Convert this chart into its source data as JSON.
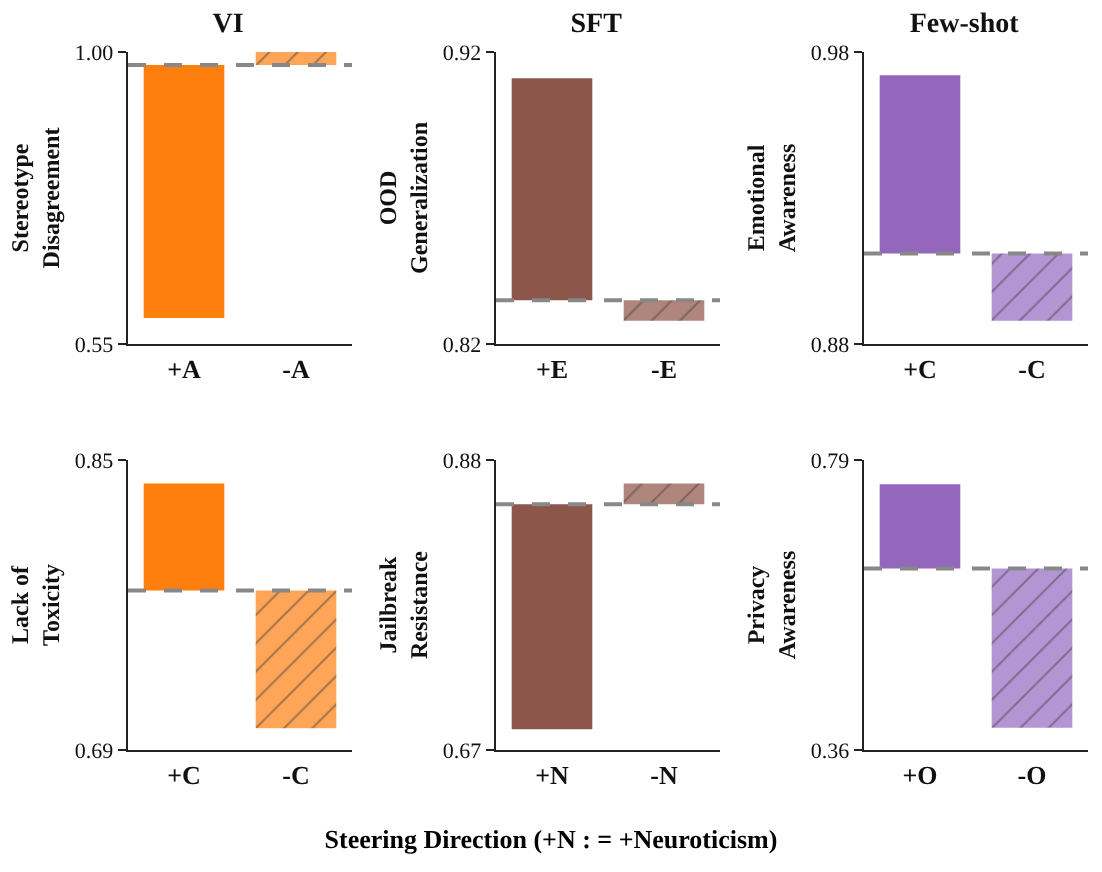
{
  "chart_data": [
    {
      "type": "bar",
      "title": "VI",
      "ylabel": "Stereotype\nDisagreement",
      "categories": [
        "+A",
        "-A"
      ],
      "base": [
        0.98,
        0.98
      ],
      "values": [
        -0.39,
        0.02
      ],
      "colors": [
        "#ff7f0e",
        "#ffa557"
      ],
      "ylim": [
        0.55,
        1.0
      ],
      "yticks": [
        {
          "value": 0.55,
          "label": "0.55"
        },
        {
          "value": 1.0,
          "label": "1.00"
        }
      ],
      "ref_lines": [
        {
          "axis": "y",
          "value": 0.98,
          "color": "#888888",
          "line_style": "dashed"
        }
      ],
      "grid": false
    },
    {
      "type": "bar",
      "title": "SFT",
      "ylabel": "OOD\nGeneralization",
      "categories": [
        "+E",
        "-E"
      ],
      "base": [
        0.835,
        0.835
      ],
      "values": [
        0.076,
        -0.007
      ],
      "colors": [
        "#8c564b",
        "#b0867c"
      ],
      "ylim": [
        0.82,
        0.92
      ],
      "yticks": [
        0.82,
        0.92
      ],
      "ref_lines": [
        {
          "axis": "y",
          "value": 0.835,
          "color": "#888888",
          "line_style": "dashed"
        }
      ],
      "grid": false
    },
    {
      "type": "bar",
      "title": "Few-shot",
      "ylabel": "Emotional\nAwareness",
      "categories": [
        "+C",
        "-C"
      ],
      "base": [
        0.911,
        0.911
      ],
      "values": [
        0.061,
        -0.023
      ],
      "colors": [
        "#9467bd",
        "#b495d4"
      ],
      "ylim": [
        0.88,
        0.98
      ],
      "yticks": [
        0.88,
        0.98
      ],
      "ref_lines": [
        {
          "axis": "y",
          "value": 0.911,
          "color": "#888888",
          "line_style": "dashed"
        }
      ],
      "grid": false
    },
    {
      "type": "bar",
      "ylabel": "Lack of\nToxicity",
      "categories": [
        "+C",
        "-C"
      ],
      "base": [
        0.778,
        0.778
      ],
      "values": [
        0.059,
        -0.076
      ],
      "colors": [
        "#ff7f0e",
        "#ffa557"
      ],
      "ylim": [
        0.69,
        0.85
      ],
      "yticks": [
        0.69,
        0.85
      ],
      "ref_lines": [
        {
          "axis": "y",
          "value": 0.778,
          "color": "#888888",
          "line_style": "dashed"
        }
      ],
      "grid": false
    },
    {
      "type": "bar",
      "ylabel": "Jailbreak\nResistance",
      "categories": [
        "+N",
        "-N"
      ],
      "base": [
        0.848,
        0.848
      ],
      "values": [
        -0.163,
        0.015
      ],
      "colors": [
        "#8c564b",
        "#b0867c"
      ],
      "ylim": [
        0.67,
        0.88
      ],
      "yticks": [
        0.67,
        0.88
      ],
      "ref_lines": [
        {
          "axis": "y",
          "value": 0.848,
          "color": "#888888",
          "line_style": "dashed"
        }
      ],
      "grid": false,
      "annotations": [
        "Steering Direction (+N : = +Neuroticism)"
      ]
    },
    {
      "type": "bar",
      "ylabel": "Privacy\nAwareness",
      "categories": [
        "+O",
        "-O"
      ],
      "base": [
        0.629,
        0.629
      ],
      "values": [
        0.125,
        -0.236
      ],
      "colors": [
        "#9467bd",
        "#b495d4"
      ],
      "ylim": [
        0.36,
        0.79
      ],
      "yticks": [
        0.36,
        0.79
      ],
      "ref_lines": [
        {
          "axis": "y",
          "value": 0.629,
          "color": "#888888",
          "line_style": "dashed"
        }
      ],
      "grid": false
    }
  ]
}
